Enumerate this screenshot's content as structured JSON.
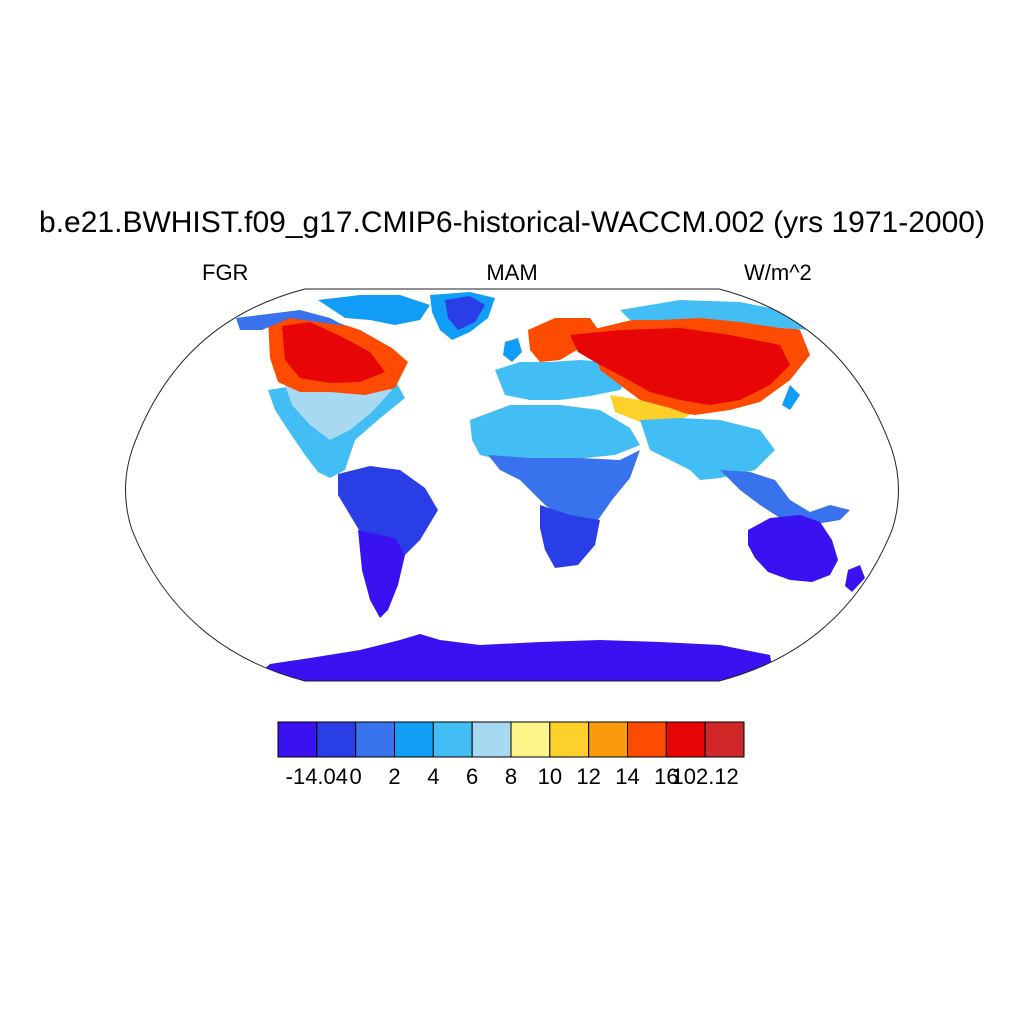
{
  "title": "b.e21.BWHIST.f09_g17.CMIP6-historical-WACCM.002 (yrs 1971-2000)",
  "left_string": "FGR",
  "center_string": "MAM",
  "right_string": "W/m^2",
  "colorbar": {
    "colors": [
      "#3a12f2",
      "#2a3ee8",
      "#3872ec",
      "#119cf5",
      "#42bef5",
      "#a7d9f2",
      "#fdf58a",
      "#fdd12a",
      "#fd9a0c",
      "#fd4c02",
      "#e80505",
      "#d02828"
    ],
    "labels": [
      "-14.04",
      "0",
      "2",
      "4",
      "6",
      "8",
      "10",
      "12",
      "14",
      "16",
      "102.12"
    ]
  },
  "chart_data": {
    "type": "heatmap",
    "projection": "Robinson",
    "variable": "FGR",
    "season": "MAM",
    "units": "W/m^2",
    "levels": [
      -14.04,
      0,
      2,
      4,
      6,
      8,
      10,
      12,
      14,
      16,
      102.12
    ]
  }
}
